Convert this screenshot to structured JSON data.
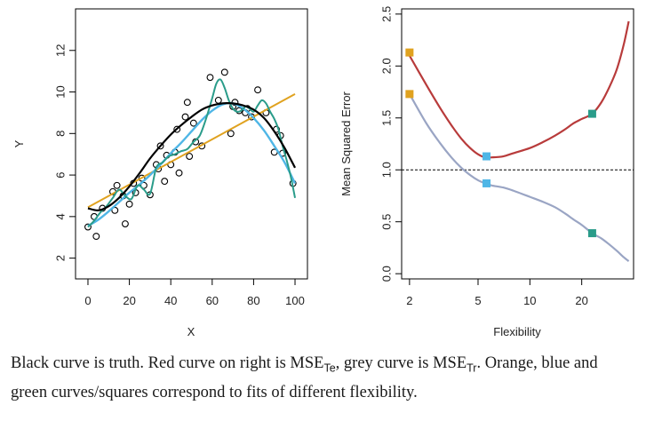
{
  "chart_data": [
    {
      "type": "scatter",
      "xlabel": "X",
      "ylabel": "Y",
      "xlim": [
        -6,
        106
      ],
      "ylim": [
        1.0,
        14.0
      ],
      "xticks": [
        0,
        20,
        40,
        60,
        80,
        100
      ],
      "yticks": [
        2,
        4,
        6,
        8,
        10,
        12
      ],
      "colors": {
        "points": "#000000",
        "truth": "#000000",
        "orange": "#E0A21F",
        "blue": "#4FB6E6",
        "green": "#2A9C8A"
      },
      "points": [
        [
          0,
          3.5
        ],
        [
          3,
          4.0
        ],
        [
          4,
          3.05
        ],
        [
          7,
          4.4
        ],
        [
          12,
          5.2
        ],
        [
          13,
          4.3
        ],
        [
          14,
          5.5
        ],
        [
          17,
          5.0
        ],
        [
          18,
          3.65
        ],
        [
          20,
          4.6
        ],
        [
          22,
          5.6
        ],
        [
          23,
          5.15
        ],
        [
          26,
          5.85
        ],
        [
          27,
          5.5
        ],
        [
          30,
          5.05
        ],
        [
          33,
          6.5
        ],
        [
          34,
          6.3
        ],
        [
          35,
          7.4
        ],
        [
          37,
          5.7
        ],
        [
          38,
          6.95
        ],
        [
          40,
          6.5
        ],
        [
          42,
          7.1
        ],
        [
          43,
          8.2
        ],
        [
          44,
          6.1
        ],
        [
          47,
          8.8
        ],
        [
          48,
          9.5
        ],
        [
          49,
          6.9
        ],
        [
          51,
          8.5
        ],
        [
          52,
          7.6
        ],
        [
          55,
          7.4
        ],
        [
          59,
          10.7
        ],
        [
          63,
          9.6
        ],
        [
          66,
          10.95
        ],
        [
          69,
          8.0
        ],
        [
          70,
          9.3
        ],
        [
          71,
          9.5
        ],
        [
          73,
          9.1
        ],
        [
          76,
          9.0
        ],
        [
          77,
          9.2
        ],
        [
          79,
          8.8
        ],
        [
          82,
          10.1
        ],
        [
          86,
          9.0
        ],
        [
          90,
          7.1
        ],
        [
          91,
          8.2
        ],
        [
          93,
          7.9
        ],
        [
          94,
          7.05
        ],
        [
          99,
          5.6
        ]
      ],
      "series": [
        {
          "x": [
            0,
            5,
            10,
            15,
            20,
            25,
            30,
            35,
            40,
            45,
            50,
            55,
            60,
            65,
            70,
            75,
            80,
            85,
            90,
            95,
            100
          ],
          "y": [
            4.4,
            4.3,
            4.5,
            4.9,
            5.45,
            6.1,
            6.8,
            7.4,
            7.95,
            8.4,
            8.8,
            9.15,
            9.35,
            9.45,
            9.45,
            9.35,
            9.15,
            8.75,
            8.1,
            7.3,
            6.35
          ]
        },
        {
          "x": [
            0,
            100
          ],
          "y": [
            4.45,
            9.9
          ]
        },
        {
          "x": [
            0,
            5,
            10,
            15,
            20,
            25,
            30,
            35,
            40,
            45,
            50,
            55,
            60,
            65,
            70,
            75,
            80,
            85,
            90,
            95,
            100
          ],
          "y": [
            3.55,
            3.85,
            4.25,
            4.7,
            5.15,
            5.55,
            6.0,
            6.5,
            7.05,
            7.55,
            8.1,
            8.65,
            9.1,
            9.4,
            9.45,
            9.2,
            8.75,
            8.15,
            7.4,
            6.6,
            5.6
          ]
        },
        {
          "x": [
            0,
            3,
            6,
            9,
            12,
            15,
            18,
            21,
            24,
            27,
            30,
            33,
            36,
            39,
            42,
            45,
            48,
            51,
            54,
            57,
            60,
            62,
            64,
            66,
            68,
            70,
            72,
            74,
            76,
            78,
            80,
            82,
            84,
            86,
            88,
            90,
            92,
            94,
            96,
            98,
            100
          ],
          "y": [
            3.5,
            3.8,
            4.2,
            4.5,
            4.9,
            5.3,
            5.0,
            4.85,
            5.5,
            5.3,
            5.1,
            6.35,
            6.6,
            6.9,
            7.0,
            7.15,
            7.25,
            7.6,
            7.9,
            8.7,
            9.7,
            10.4,
            10.6,
            10.2,
            9.6,
            9.2,
            9.05,
            9.1,
            9.3,
            9.2,
            9.05,
            9.35,
            9.6,
            9.45,
            9.05,
            8.7,
            8.2,
            7.4,
            6.7,
            5.9,
            4.9
          ]
        }
      ]
    },
    {
      "type": "line",
      "xlabel": "Flexibility",
      "ylabel": "Mean Squared Error",
      "xscale": "log",
      "xlim": [
        1.8,
        40
      ],
      "ylim": [
        -0.05,
        2.55
      ],
      "xticks": [
        2,
        5,
        10,
        20
      ],
      "yticks": [
        0.0,
        0.5,
        1.0,
        1.5,
        2.0,
        2.5
      ],
      "reference_line": 1.0,
      "series": [
        {
          "color": "#B83B3B",
          "x": [
            2,
            2.5,
            3,
            3.5,
            4,
            4.5,
            5,
            5.5,
            6,
            7,
            8,
            10,
            12,
            14,
            16,
            18,
            20,
            23,
            26,
            29,
            32,
            35,
            37.5
          ],
          "y": [
            2.1,
            1.82,
            1.6,
            1.43,
            1.3,
            1.21,
            1.15,
            1.12,
            1.12,
            1.13,
            1.16,
            1.21,
            1.27,
            1.33,
            1.39,
            1.45,
            1.49,
            1.54,
            1.65,
            1.8,
            1.97,
            2.2,
            2.43
          ]
        },
        {
          "color": "#9AA5C4",
          "x": [
            2,
            2.5,
            3,
            3.5,
            4,
            4.5,
            5,
            5.5,
            6,
            7,
            8,
            10,
            12,
            14,
            16,
            18,
            20,
            23,
            26,
            29,
            32,
            35,
            37.5
          ],
          "y": [
            1.73,
            1.45,
            1.26,
            1.12,
            1.02,
            0.95,
            0.9,
            0.87,
            0.85,
            0.83,
            0.8,
            0.74,
            0.69,
            0.64,
            0.58,
            0.52,
            0.47,
            0.39,
            0.34,
            0.28,
            0.22,
            0.16,
            0.12
          ]
        }
      ],
      "squares": [
        {
          "x": 2,
          "y": 2.13,
          "color": "#E0A21F"
        },
        {
          "x": 2,
          "y": 1.73,
          "color": "#E0A21F"
        },
        {
          "x": 5.6,
          "y": 1.13,
          "color": "#4FB6E6"
        },
        {
          "x": 5.6,
          "y": 0.87,
          "color": "#4FB6E6"
        },
        {
          "x": 23,
          "y": 1.54,
          "color": "#2A9C8A"
        },
        {
          "x": 23,
          "y": 0.39,
          "color": "#2A9C8A"
        }
      ]
    }
  ],
  "caption": {
    "part1": "Black curve is truth. Red curve on right is MSE",
    "sub1": "Te",
    "part2": ", grey curve is MSE",
    "sub2": "Tr",
    "part3": ". Orange, blue and green curves/squares correspond to fits of different flexibility."
  }
}
